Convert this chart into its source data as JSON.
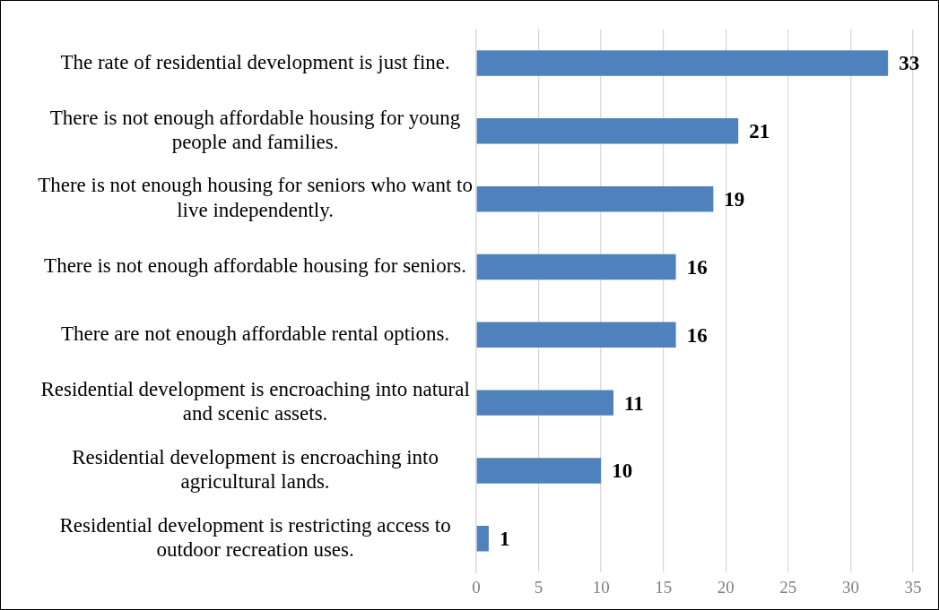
{
  "chart_data": {
    "type": "bar",
    "orientation": "horizontal",
    "categories": [
      "The rate of residential development is just fine.",
      "There is not enough affordable housing for young people and families.",
      "There is not enough housing for seniors who want to live independently.",
      "There is not enough affordable housing for seniors.",
      "There are not enough affordable rental options.",
      "Residential development is encroaching into natural and scenic assets.",
      "Residential development is encroaching into agricultural lands.",
      "Residential development is restricting access to outdoor recreation uses."
    ],
    "values": [
      33,
      21,
      19,
      16,
      16,
      11,
      10,
      1
    ],
    "color": "#4f81bd",
    "xlim": [
      0,
      35
    ],
    "xticks": [
      0,
      5,
      10,
      15,
      20,
      25,
      30,
      35
    ],
    "grid": "x",
    "data_labels": true
  }
}
